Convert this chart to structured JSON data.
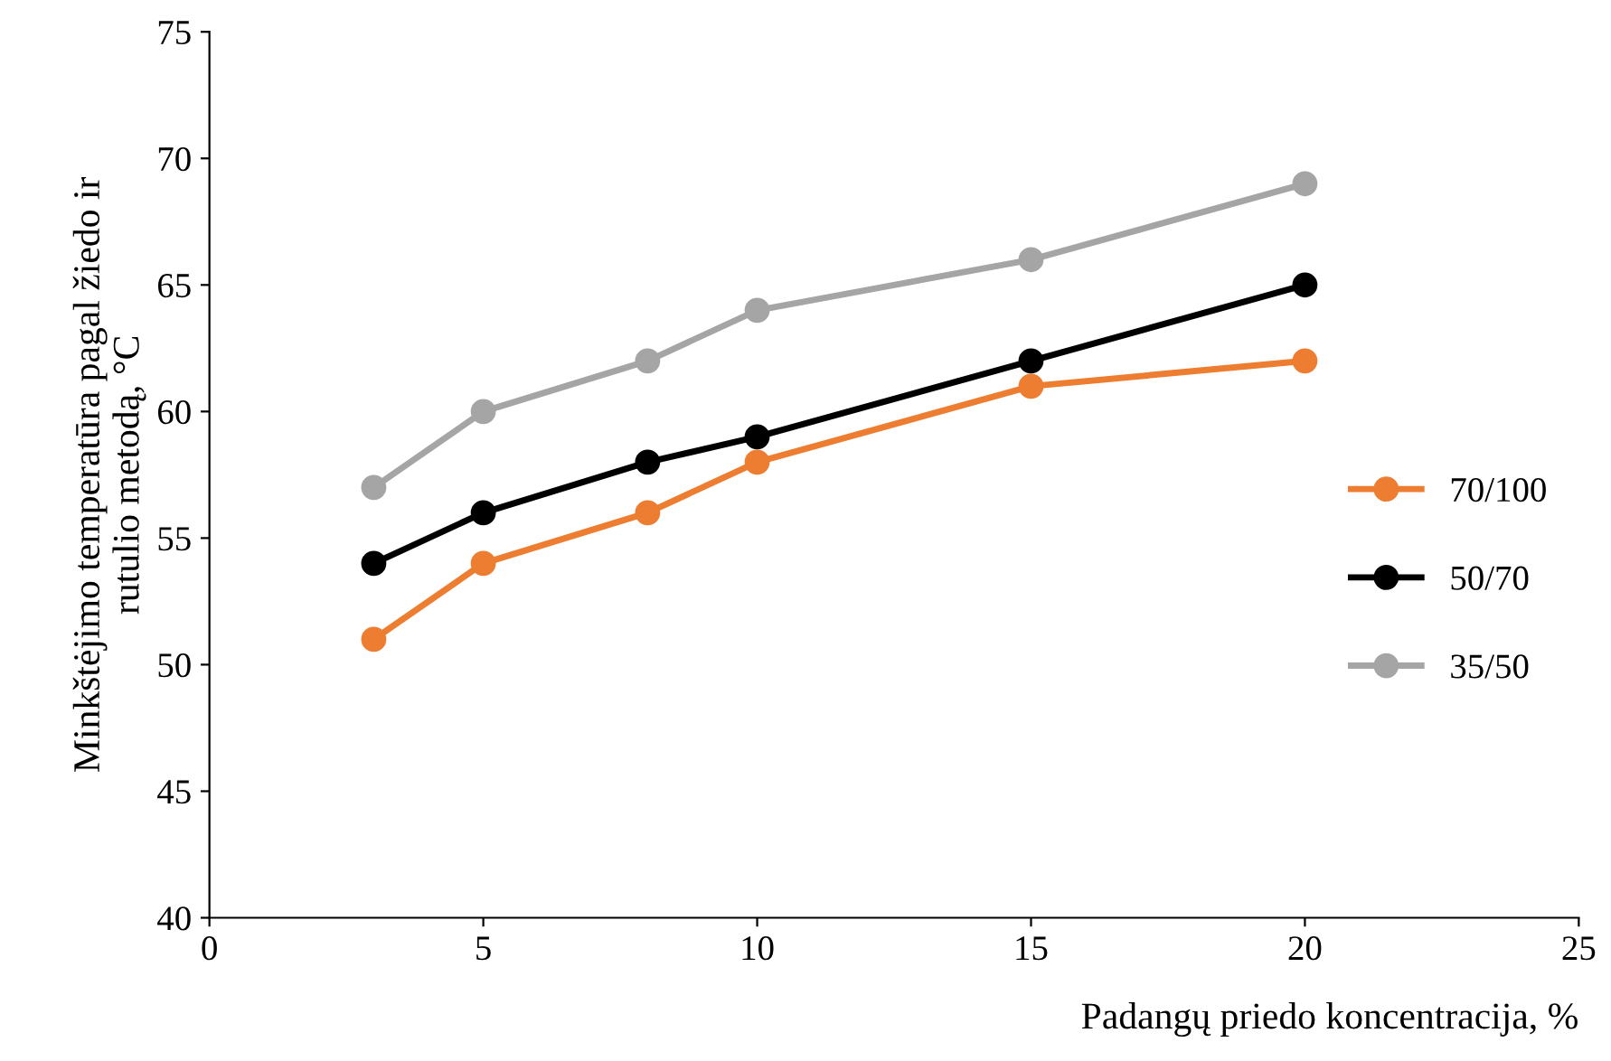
{
  "chart_data": {
    "type": "line",
    "xlabel": "Padangų priedo koncentracija, %",
    "ylabel": "Minkštėjimo temperatūra pagal žiedo ir\nrutulio metodą, °C",
    "x": [
      3,
      5,
      8,
      10,
      15,
      20
    ],
    "series": [
      {
        "name": "70/100",
        "color": "#ed7d31",
        "values": [
          51,
          54,
          56,
          58,
          61,
          62
        ]
      },
      {
        "name": "50/70",
        "color": "#000000",
        "values": [
          54,
          56,
          58,
          59,
          62,
          65
        ]
      },
      {
        "name": "35/50",
        "color": "#a5a5a5",
        "values": [
          57,
          60,
          62,
          64,
          66,
          69
        ]
      }
    ],
    "xlim": [
      0,
      25
    ],
    "xticks": [
      0,
      5,
      10,
      15,
      20,
      25
    ],
    "ylim": [
      40,
      75
    ],
    "yticks": [
      40,
      45,
      50,
      55,
      60,
      65,
      70,
      75
    ],
    "grid": false,
    "legend": "right",
    "marker": "circle",
    "line_style": "solid"
  }
}
